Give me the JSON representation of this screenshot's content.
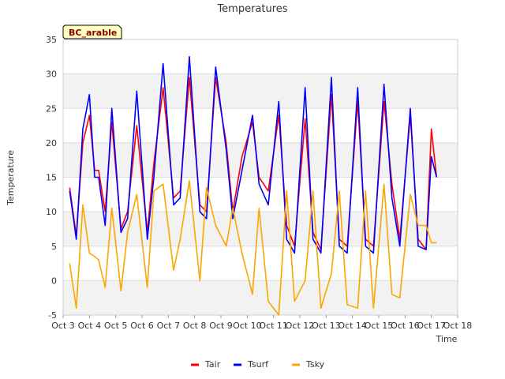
{
  "chart_data": {
    "type": "line",
    "title": "Temperatures",
    "site_label": "BC_arable",
    "xlabel": "Time",
    "ylabel": "Temperature",
    "ylim": [
      -5,
      35
    ],
    "xlim": [
      3,
      18
    ],
    "yticks": [
      "-5",
      "0",
      "5",
      "10",
      "15",
      "20",
      "25",
      "30",
      "35"
    ],
    "xticks": [
      "Oct 3",
      "Oct 4",
      "Oct 5",
      "Oct 6",
      "Oct 7",
      "Oct 8",
      "Oct 9",
      "Oct 10",
      "Oct 11",
      "Oct 12",
      "Oct 13",
      "Oct 14",
      "Oct 15",
      "Oct 16",
      "Oct 17",
      "Oct 18"
    ],
    "legend_position": "bottom",
    "series": [
      {
        "name": "Tair",
        "color": "#ff0000",
        "x": [
          3.25,
          3.5,
          3.75,
          4.0,
          4.2,
          4.35,
          4.6,
          4.85,
          5.2,
          5.45,
          5.8,
          6.2,
          6.45,
          6.8,
          7.2,
          7.45,
          7.8,
          8.2,
          8.45,
          8.8,
          9.2,
          9.45,
          9.8,
          10.2,
          10.45,
          10.8,
          11.2,
          11.5,
          11.8,
          12.2,
          12.5,
          12.8,
          13.2,
          13.5,
          13.8,
          14.2,
          14.5,
          14.8,
          15.2,
          15.5,
          15.8,
          16.2,
          16.5,
          16.8,
          17.0,
          17.2
        ],
        "y": [
          13.5,
          6.5,
          20,
          24,
          16,
          16,
          10,
          23,
          7.5,
          10,
          22.5,
          7,
          17,
          28,
          12,
          13,
          29.5,
          11,
          10,
          29.5,
          20,
          10,
          18,
          23,
          15,
          13,
          24,
          8,
          5,
          23.5,
          7,
          4.5,
          27,
          6,
          5,
          26,
          6,
          5,
          26,
          14,
          6,
          24,
          6,
          4.5,
          22,
          15
        ]
      },
      {
        "name": "Tsurf",
        "color": "#0000ff",
        "x": [
          3.25,
          3.5,
          3.75,
          4.0,
          4.2,
          4.35,
          4.6,
          4.85,
          5.2,
          5.45,
          5.8,
          6.2,
          6.45,
          6.8,
          7.2,
          7.45,
          7.8,
          8.2,
          8.45,
          8.8,
          9.2,
          9.45,
          9.8,
          10.2,
          10.45,
          10.8,
          11.2,
          11.5,
          11.8,
          12.2,
          12.5,
          12.8,
          13.2,
          13.5,
          13.8,
          14.2,
          14.5,
          14.8,
          15.2,
          15.5,
          15.8,
          16.2,
          16.5,
          16.8,
          17.0,
          17.2
        ],
        "y": [
          13,
          6,
          22,
          27,
          15,
          15,
          8,
          25,
          7,
          9,
          27.5,
          6,
          15,
          31.5,
          11,
          12,
          32.5,
          10,
          9,
          31,
          19,
          9,
          16,
          24,
          14,
          11,
          26,
          6,
          4,
          28,
          6,
          4,
          29.5,
          5,
          4,
          28,
          5,
          4,
          28.5,
          12,
          5,
          25,
          5,
          4.5,
          18,
          15
        ]
      },
      {
        "name": "Tsky",
        "color": "#ffa500",
        "x": [
          3.25,
          3.5,
          3.75,
          4.0,
          4.2,
          4.35,
          4.6,
          4.85,
          5.2,
          5.45,
          5.8,
          6.2,
          6.45,
          6.8,
          7.2,
          7.45,
          7.8,
          8.2,
          8.45,
          8.8,
          9.2,
          9.45,
          9.8,
          10.2,
          10.45,
          10.8,
          11.2,
          11.5,
          11.8,
          12.2,
          12.5,
          12.8,
          13.2,
          13.5,
          13.8,
          14.2,
          14.5,
          14.8,
          15.2,
          15.5,
          15.8,
          16.2,
          16.5,
          16.8,
          17.0,
          17.2
        ],
        "y": [
          2.5,
          -4,
          11,
          4,
          3.5,
          3,
          -1,
          10.5,
          -1.5,
          7,
          12.5,
          -1,
          13,
          14,
          1.5,
          6,
          14.5,
          0,
          13.5,
          8,
          5,
          10.5,
          4,
          -2,
          10.5,
          -3,
          -5,
          13,
          -3,
          0,
          13,
          -4,
          1,
          13,
          -3.5,
          -4,
          13,
          -4,
          14,
          -2,
          -2.5,
          12.5,
          8,
          8,
          5.5,
          5.5
        ]
      }
    ]
  }
}
